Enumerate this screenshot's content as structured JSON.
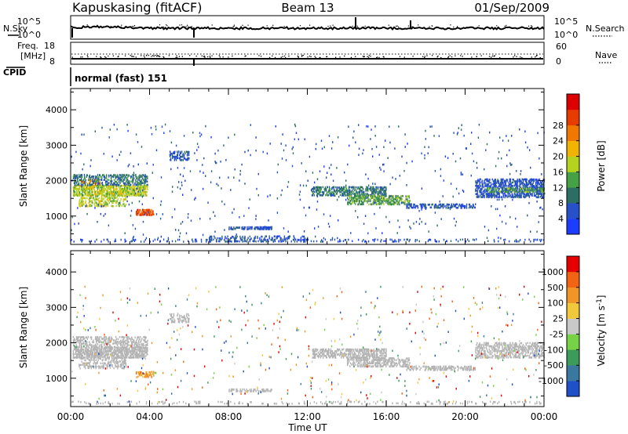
{
  "header": {
    "station": "Kapuskasing (fitACF)",
    "beam": "Beam 13",
    "date": "01/Sep/2009"
  },
  "strip_panels": {
    "nsky_label": "N.Sky",
    "nsearch_label": "N.Search",
    "noise_ticks_left": [
      "10^5",
      "10^0"
    ],
    "noise_ticks_right": [
      "10^5",
      "10^0"
    ],
    "freq_label_line1": "Freq.",
    "freq_label_line2": "[MHz]",
    "freq_ticks": [
      "18",
      "8"
    ],
    "nave_label": "Nave",
    "nave_ticks": [
      "60",
      "0"
    ],
    "cpid_label": "CPID",
    "cpid_value": "normal (fast) 151"
  },
  "colors": {
    "power_scale": [
      "#1e3cff",
      "#2850c8",
      "#2d6e64",
      "#46a046",
      "#b4d21e",
      "#f0b400",
      "#f07800",
      "#e63c00",
      "#dc0000"
    ],
    "velocity_scale": [
      "#2050c8",
      "#3a78a0",
      "#3c9a5a",
      "#78d246",
      "#c8c8c8",
      "#f0c83c",
      "#f09628",
      "#f06414",
      "#e60000"
    ],
    "ground_scatter": "#b4b4b4"
  },
  "chart_data": [
    {
      "type": "heatmap",
      "name": "power",
      "ylabel": "Slant Range [km]",
      "yticks": [
        "1000",
        "2000",
        "3000",
        "4000"
      ],
      "ylim": [
        200,
        4600
      ],
      "xlim": [
        0,
        24
      ],
      "colorbar_label": "Power [dB]",
      "colorbar_ticks": [
        "4",
        "8",
        "12",
        "16",
        "20",
        "24",
        "28"
      ],
      "bands": [
        {
          "t": [
            0.1,
            3.9
          ],
          "r": [
            1550,
            1850
          ],
          "level": 4,
          "density": 0.7
        },
        {
          "t": [
            0.1,
            3.9
          ],
          "r": [
            1850,
            2150
          ],
          "level": 2,
          "density": 0.5
        },
        {
          "t": [
            0.4,
            2.8
          ],
          "r": [
            1250,
            1550
          ],
          "level": 4,
          "density": 0.45
        },
        {
          "t": [
            0.5,
            1.5
          ],
          "r": [
            1850,
            2050
          ],
          "level": 6,
          "density": 0.25
        },
        {
          "t": [
            3.3,
            4.2
          ],
          "r": [
            1000,
            1200
          ],
          "level": 7,
          "density": 0.7
        },
        {
          "t": [
            5.0,
            6.0
          ],
          "r": [
            2550,
            2800
          ],
          "level": 1,
          "density": 0.4
        },
        {
          "t": [
            8.0,
            10.2
          ],
          "r": [
            600,
            700
          ],
          "level": 1,
          "density": 0.6
        },
        {
          "t": [
            7.0,
            12.0
          ],
          "r": [
            250,
            450
          ],
          "level": 1,
          "density": 0.3
        },
        {
          "t": [
            12.2,
            16.0
          ],
          "r": [
            1550,
            1800
          ],
          "level": 2,
          "density": 0.6
        },
        {
          "t": [
            14.0,
            17.2
          ],
          "r": [
            1300,
            1550
          ],
          "level": 3,
          "density": 0.55
        },
        {
          "t": [
            17.0,
            20.5
          ],
          "r": [
            1200,
            1350
          ],
          "level": 1,
          "density": 0.55
        },
        {
          "t": [
            20.5,
            24.0
          ],
          "r": [
            1500,
            2050
          ],
          "level": 1,
          "density": 0.55
        },
        {
          "t": [
            21.0,
            24.0
          ],
          "r": [
            1650,
            1800
          ],
          "level": 3,
          "density": 0.4
        },
        {
          "t": [
            0.0,
            24.0
          ],
          "r": [
            250,
            300
          ],
          "level": 1,
          "density": 0.15
        },
        {
          "t": [
            0.0,
            24.0
          ],
          "r": [
            300,
            3600
          ],
          "level": 1,
          "density": 0.012
        }
      ]
    },
    {
      "type": "heatmap",
      "name": "velocity",
      "ylabel": "Slant Range [km]",
      "xlabel": "Time UT",
      "yticks": [
        "1000",
        "2000",
        "3000",
        "4000"
      ],
      "xticks": [
        "00:00",
        "04:00",
        "08:00",
        "12:00",
        "16:00",
        "20:00",
        "00:00"
      ],
      "ylim": [
        200,
        4600
      ],
      "xlim": [
        0,
        24
      ],
      "colorbar_label": "Velocity [m s",
      "colorbar_label_sup": "-1",
      "colorbar_label_end": "]",
      "colorbar_ticks": [
        "1000",
        "500",
        "100",
        "25",
        "-25",
        "-100",
        "-500",
        "-1000"
      ],
      "bands": [
        {
          "t": [
            0.1,
            3.9
          ],
          "r": [
            1550,
            1850
          ],
          "level": "gs",
          "density": 0.7
        },
        {
          "t": [
            0.1,
            3.9
          ],
          "r": [
            1850,
            2150
          ],
          "level": "gs",
          "density": 0.45
        },
        {
          "t": [
            0.4,
            2.8
          ],
          "r": [
            1250,
            1550
          ],
          "level": "gs",
          "density": 0.4
        },
        {
          "t": [
            3.3,
            4.2
          ],
          "r": [
            1000,
            1200
          ],
          "level": 6,
          "density": 0.6
        },
        {
          "t": [
            5.0,
            6.0
          ],
          "r": [
            2550,
            2800
          ],
          "level": "gs",
          "density": 0.4
        },
        {
          "t": [
            8.0,
            10.2
          ],
          "r": [
            600,
            700
          ],
          "level": "gs",
          "density": 0.5
        },
        {
          "t": [
            12.2,
            16.0
          ],
          "r": [
            1550,
            1800
          ],
          "level": "gs",
          "density": 0.55
        },
        {
          "t": [
            14.0,
            17.2
          ],
          "r": [
            1300,
            1550
          ],
          "level": "gs",
          "density": 0.5
        },
        {
          "t": [
            17.0,
            20.5
          ],
          "r": [
            1200,
            1350
          ],
          "level": "gs",
          "density": 0.5
        },
        {
          "t": [
            20.5,
            24.0
          ],
          "r": [
            1550,
            2000
          ],
          "level": "gs",
          "density": 0.5
        },
        {
          "t": [
            0.0,
            24.0
          ],
          "r": [
            250,
            300
          ],
          "level": "gs",
          "density": 0.15
        },
        {
          "t": [
            0.0,
            24.0
          ],
          "r": [
            300,
            3600
          ],
          "level": "mixed",
          "density": 0.012
        }
      ]
    }
  ]
}
